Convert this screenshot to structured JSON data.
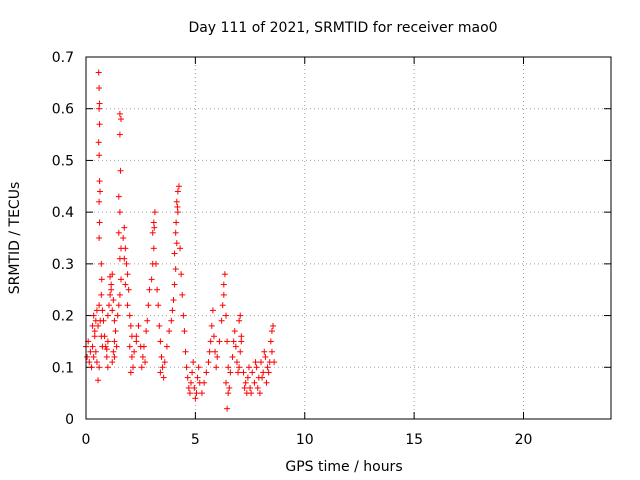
{
  "chart_data": {
    "type": "scatter",
    "title": "Day 111 of 2021, SRMTID for receiver mao0",
    "xlabel": "GPS time / hours",
    "ylabel": "SRMTID / TECUs",
    "xlim": [
      0,
      24
    ],
    "ylim": [
      0,
      0.7
    ],
    "xticks": [
      0,
      5,
      10,
      15,
      20
    ],
    "yticks": [
      0,
      0.1,
      0.2,
      0.3,
      0.4,
      0.5,
      0.6,
      0.7
    ],
    "xtick_labels": [
      "0",
      "5",
      "10",
      "15",
      "20"
    ],
    "ytick_labels": [
      "0",
      "0.1",
      "0.2",
      "0.3",
      "0.4",
      "0.5",
      "0.6",
      "0.7"
    ],
    "grid": true,
    "marker": "+",
    "marker_color": "#ff0000",
    "series": [
      {
        "name": "mao0",
        "points": [
          [
            0.0,
            0.14
          ],
          [
            0.05,
            0.12
          ],
          [
            0.1,
            0.15
          ],
          [
            0.15,
            0.11
          ],
          [
            0.2,
            0.13
          ],
          [
            0.25,
            0.1
          ],
          [
            0.3,
            0.14
          ],
          [
            0.35,
            0.12
          ],
          [
            0.4,
            0.16
          ],
          [
            0.45,
            0.13
          ],
          [
            0.5,
            0.11
          ],
          [
            0.55,
            0.075
          ],
          [
            0.6,
            0.1
          ],
          [
            0.3,
            0.18
          ],
          [
            0.35,
            0.2
          ],
          [
            0.4,
            0.17
          ],
          [
            0.45,
            0.19
          ],
          [
            0.5,
            0.21
          ],
          [
            0.55,
            0.18
          ],
          [
            0.6,
            0.22
          ],
          [
            0.65,
            0.19
          ],
          [
            0.7,
            0.16
          ],
          [
            0.75,
            0.14
          ],
          [
            0.58,
            0.67
          ],
          [
            0.6,
            0.64
          ],
          [
            0.62,
            0.61
          ],
          [
            0.6,
            0.6
          ],
          [
            0.62,
            0.57
          ],
          [
            0.58,
            0.535
          ],
          [
            0.6,
            0.51
          ],
          [
            0.62,
            0.46
          ],
          [
            0.64,
            0.44
          ],
          [
            0.6,
            0.42
          ],
          [
            0.62,
            0.38
          ],
          [
            0.6,
            0.35
          ],
          [
            0.7,
            0.3
          ],
          [
            0.7,
            0.24
          ],
          [
            0.72,
            0.27
          ],
          [
            0.75,
            0.21
          ],
          [
            0.8,
            0.19
          ],
          [
            0.85,
            0.16
          ],
          [
            0.9,
            0.14
          ],
          [
            0.95,
            0.12
          ],
          [
            1.0,
            0.1
          ],
          [
            0.95,
            0.135
          ],
          [
            1.0,
            0.15
          ],
          [
            1.0,
            0.2
          ],
          [
            1.05,
            0.22
          ],
          [
            1.1,
            0.24
          ],
          [
            1.15,
            0.26
          ],
          [
            1.2,
            0.28
          ],
          [
            1.1,
            0.275
          ],
          [
            1.15,
            0.25
          ],
          [
            1.25,
            0.23
          ],
          [
            1.2,
            0.21
          ],
          [
            1.3,
            0.19
          ],
          [
            1.35,
            0.17
          ],
          [
            1.3,
            0.15
          ],
          [
            1.25,
            0.13
          ],
          [
            1.2,
            0.11
          ],
          [
            1.3,
            0.12
          ],
          [
            1.4,
            0.14
          ],
          [
            1.45,
            0.2
          ],
          [
            1.5,
            0.22
          ],
          [
            1.55,
            0.24
          ],
          [
            1.6,
            0.27
          ],
          [
            1.55,
            0.31
          ],
          [
            1.6,
            0.33
          ],
          [
            1.5,
            0.36
          ],
          [
            1.55,
            0.4
          ],
          [
            1.5,
            0.43
          ],
          [
            1.58,
            0.48
          ],
          [
            1.55,
            0.55
          ],
          [
            1.6,
            0.58
          ],
          [
            1.55,
            0.59
          ],
          [
            1.7,
            0.35
          ],
          [
            1.75,
            0.37
          ],
          [
            1.8,
            0.33
          ],
          [
            1.85,
            0.3
          ],
          [
            1.75,
            0.31
          ],
          [
            1.9,
            0.28
          ],
          [
            1.8,
            0.26
          ],
          [
            1.95,
            0.25
          ],
          [
            1.9,
            0.22
          ],
          [
            2.0,
            0.2
          ],
          [
            2.05,
            0.18
          ],
          [
            2.1,
            0.16
          ],
          [
            2.0,
            0.14
          ],
          [
            2.1,
            0.12
          ],
          [
            2.05,
            0.09
          ],
          [
            2.15,
            0.1
          ],
          [
            2.2,
            0.13
          ],
          [
            2.3,
            0.16
          ],
          [
            2.4,
            0.18
          ],
          [
            2.3,
            0.15
          ],
          [
            2.5,
            0.14
          ],
          [
            2.6,
            0.12
          ],
          [
            2.55,
            0.1
          ],
          [
            2.7,
            0.11
          ],
          [
            2.65,
            0.14
          ],
          [
            2.75,
            0.17
          ],
          [
            2.8,
            0.19
          ],
          [
            2.85,
            0.22
          ],
          [
            2.9,
            0.25
          ],
          [
            3.0,
            0.27
          ],
          [
            3.05,
            0.3
          ],
          [
            3.1,
            0.33
          ],
          [
            3.05,
            0.36
          ],
          [
            3.1,
            0.38
          ],
          [
            3.15,
            0.4
          ],
          [
            3.12,
            0.37
          ],
          [
            3.2,
            0.3
          ],
          [
            3.25,
            0.25
          ],
          [
            3.3,
            0.22
          ],
          [
            3.35,
            0.18
          ],
          [
            3.4,
            0.15
          ],
          [
            3.45,
            0.12
          ],
          [
            3.5,
            0.1
          ],
          [
            3.4,
            0.09
          ],
          [
            3.55,
            0.08
          ],
          [
            3.6,
            0.11
          ],
          [
            3.7,
            0.14
          ],
          [
            3.8,
            0.17
          ],
          [
            3.9,
            0.19
          ],
          [
            3.95,
            0.21
          ],
          [
            4.0,
            0.23
          ],
          [
            4.05,
            0.26
          ],
          [
            4.1,
            0.29
          ],
          [
            4.05,
            0.32
          ],
          [
            4.15,
            0.34
          ],
          [
            4.1,
            0.36
          ],
          [
            4.12,
            0.38
          ],
          [
            4.2,
            0.4
          ],
          [
            4.15,
            0.42
          ],
          [
            4.2,
            0.44
          ],
          [
            4.25,
            0.45
          ],
          [
            4.18,
            0.41
          ],
          [
            4.3,
            0.33
          ],
          [
            4.35,
            0.28
          ],
          [
            4.4,
            0.24
          ],
          [
            4.45,
            0.2
          ],
          [
            4.5,
            0.17
          ],
          [
            4.55,
            0.13
          ],
          [
            4.6,
            0.1
          ],
          [
            4.65,
            0.08
          ],
          [
            4.7,
            0.06
          ],
          [
            4.75,
            0.05
          ],
          [
            4.8,
            0.07
          ],
          [
            4.85,
            0.09
          ],
          [
            4.9,
            0.11
          ],
          [
            4.95,
            0.06
          ],
          [
            5.0,
            0.04
          ],
          [
            5.05,
            0.05
          ],
          [
            5.1,
            0.08
          ],
          [
            5.15,
            0.1
          ],
          [
            5.2,
            0.07
          ],
          [
            5.3,
            0.05
          ],
          [
            5.4,
            0.07
          ],
          [
            5.5,
            0.09
          ],
          [
            5.6,
            0.11
          ],
          [
            5.65,
            0.13
          ],
          [
            5.7,
            0.15
          ],
          [
            5.75,
            0.18
          ],
          [
            5.8,
            0.21
          ],
          [
            5.85,
            0.16
          ],
          [
            5.9,
            0.13
          ],
          [
            5.95,
            0.1
          ],
          [
            6.0,
            0.12
          ],
          [
            6.1,
            0.15
          ],
          [
            6.2,
            0.19
          ],
          [
            6.25,
            0.22
          ],
          [
            6.3,
            0.26
          ],
          [
            6.35,
            0.28
          ],
          [
            6.3,
            0.24
          ],
          [
            6.4,
            0.2
          ],
          [
            6.45,
            0.15
          ],
          [
            6.5,
            0.1
          ],
          [
            6.4,
            0.07
          ],
          [
            6.5,
            0.05
          ],
          [
            6.45,
            0.02
          ],
          [
            6.55,
            0.06
          ],
          [
            6.6,
            0.09
          ],
          [
            6.7,
            0.12
          ],
          [
            6.75,
            0.15
          ],
          [
            6.8,
            0.17
          ],
          [
            6.85,
            0.14
          ],
          [
            6.9,
            0.11
          ],
          [
            6.95,
            0.09
          ],
          [
            7.0,
            0.1
          ],
          [
            7.05,
            0.13
          ],
          [
            7.1,
            0.16
          ],
          [
            7.0,
            0.19
          ],
          [
            7.05,
            0.2
          ],
          [
            7.1,
            0.15
          ],
          [
            7.2,
            0.09
          ],
          [
            7.3,
            0.07
          ],
          [
            7.35,
            0.05
          ],
          [
            7.4,
            0.08
          ],
          [
            7.5,
            0.06
          ],
          [
            7.6,
            0.09
          ],
          [
            7.7,
            0.07
          ],
          [
            7.8,
            0.1
          ],
          [
            7.9,
            0.08
          ],
          [
            8.0,
            0.11
          ],
          [
            8.1,
            0.09
          ],
          [
            8.2,
            0.12
          ],
          [
            8.3,
            0.1
          ],
          [
            8.4,
            0.11
          ],
          [
            8.5,
            0.13
          ],
          [
            7.25,
            0.06
          ],
          [
            7.45,
            0.1
          ],
          [
            7.55,
            0.05
          ],
          [
            7.75,
            0.11
          ],
          [
            7.85,
            0.06
          ],
          [
            7.95,
            0.05
          ],
          [
            8.05,
            0.08
          ],
          [
            8.15,
            0.13
          ],
          [
            8.25,
            0.07
          ],
          [
            8.35,
            0.09
          ],
          [
            8.45,
            0.15
          ],
          [
            8.5,
            0.17
          ],
          [
            8.55,
            0.18
          ],
          [
            8.6,
            0.11
          ]
        ]
      }
    ]
  }
}
